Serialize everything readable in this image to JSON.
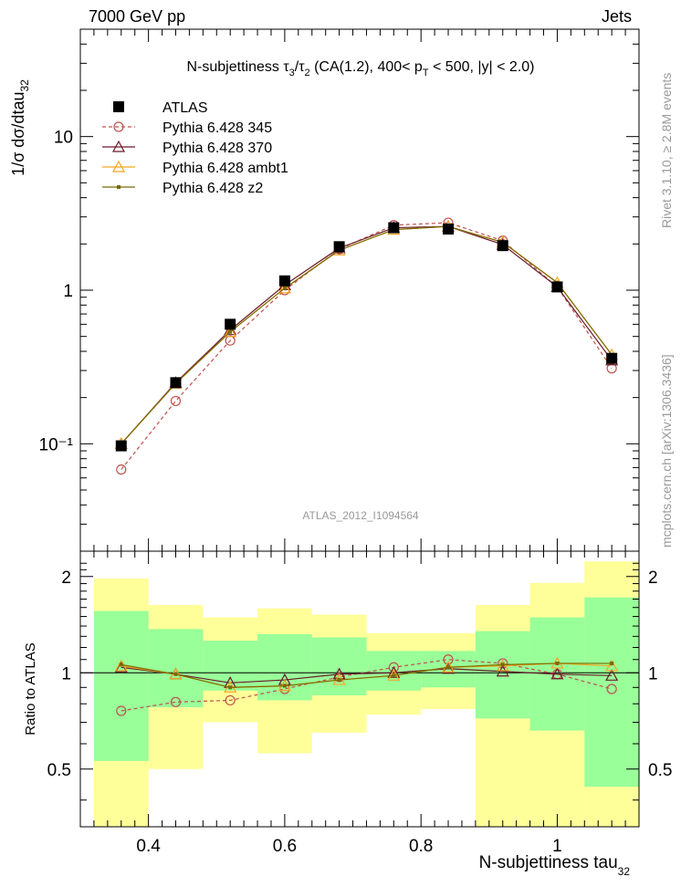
{
  "header": {
    "left": "7000 GeV pp",
    "right": "Jets"
  },
  "side_labels": {
    "rivet": "Rivet 3.1.10, ≥ 2.8M events",
    "mcplots": "mcplots.cern.ch [arXiv:1306.3436]"
  },
  "analysis_id": "ATLAS_2012_I1094564",
  "chart_data": [
    {
      "type": "line",
      "title": "N-subjettiness  τ3/τ2 (CA(1.2), 400< pT < 500, |y| < 2.0)",
      "ylabel": "1/σ dσ/dtau32",
      "yscale": "log",
      "ylim": [
        0.02,
        50
      ],
      "xlim": [
        0.3,
        1.12
      ],
      "ytick_labels": [
        "10⁻¹",
        "1",
        "10"
      ],
      "x": [
        0.36,
        0.44,
        0.52,
        0.6,
        0.68,
        0.76,
        0.84,
        0.92,
        1.0,
        1.08
      ],
      "series": [
        {
          "name": "ATLAS",
          "color": "#000000",
          "marker": "square",
          "values": [
            0.097,
            0.25,
            0.6,
            1.15,
            1.92,
            2.55,
            2.5,
            1.95,
            1.05,
            0.36
          ]
        },
        {
          "name": "Pythia 6.428 345",
          "color": "#c0504d",
          "marker": "circle",
          "dashed": true,
          "values": [
            0.068,
            0.19,
            0.47,
            1.0,
            1.85,
            2.65,
            2.75,
            2.1,
            1.05,
            0.31
          ]
        },
        {
          "name": "Pythia 6.428 370",
          "color": "#6b1a2b",
          "marker": "triangle",
          "values": [
            0.1,
            0.25,
            0.55,
            1.08,
            1.88,
            2.55,
            2.6,
            1.98,
            1.05,
            0.35
          ]
        },
        {
          "name": "Pythia 6.428 ambt1",
          "color": "#f5a623",
          "marker": "triangle",
          "values": [
            0.1,
            0.247,
            0.535,
            1.03,
            1.82,
            2.48,
            2.6,
            2.05,
            1.12,
            0.38
          ]
        },
        {
          "name": "Pythia 6.428 z2",
          "color": "#7a6a00",
          "marker": "dot",
          "values": [
            0.1,
            0.247,
            0.535,
            1.03,
            1.82,
            2.48,
            2.6,
            2.05,
            1.12,
            0.38
          ]
        }
      ]
    },
    {
      "type": "line",
      "xlabel": "N-subjettiness tau32",
      "ylabel": "Ratio to ATLAS",
      "yscale": "log",
      "ylim": [
        0.33,
        2.4
      ],
      "xlim": [
        0.3,
        1.12
      ],
      "x_ticks": [
        0.4,
        0.6,
        0.8,
        1.0
      ],
      "x_tick_labels": [
        "0.4",
        "0.6",
        "0.8",
        "1"
      ],
      "y_ticks": [
        0.5,
        1,
        2
      ],
      "y_tick_labels": [
        "0.5",
        "1",
        "2"
      ],
      "x": [
        0.36,
        0.44,
        0.52,
        0.6,
        0.68,
        0.76,
        0.84,
        0.92,
        1.0,
        1.08
      ],
      "bin_edges": [
        0.32,
        0.4,
        0.48,
        0.56,
        0.64,
        0.72,
        0.8,
        0.88,
        0.96,
        1.04,
        1.12
      ],
      "bands": {
        "yellow": {
          "color": "#ffff99",
          "low": [
            0.33,
            0.5,
            0.7,
            0.56,
            0.65,
            0.74,
            0.77,
            0.33,
            0.33,
            0.33
          ],
          "high": [
            1.97,
            1.63,
            1.49,
            1.59,
            1.52,
            1.33,
            1.33,
            1.63,
            1.91,
            2.23
          ]
        },
        "green": {
          "color": "#99ff99",
          "low": [
            0.53,
            0.78,
            0.88,
            0.82,
            0.85,
            0.88,
            0.9,
            0.72,
            0.66,
            0.44
          ],
          "high": [
            1.56,
            1.37,
            1.26,
            1.32,
            1.29,
            1.17,
            1.17,
            1.35,
            1.49,
            1.72
          ]
        }
      },
      "series": [
        {
          "name": "Pythia 6.428 345",
          "color": "#c0504d",
          "marker": "circle",
          "dashed": true,
          "values": [
            0.76,
            0.81,
            0.82,
            0.89,
            0.97,
            1.04,
            1.1,
            1.07,
            0.99,
            0.89
          ]
        },
        {
          "name": "Pythia 6.428 370",
          "color": "#6b1a2b",
          "marker": "triangle",
          "values": [
            1.04,
            0.99,
            0.93,
            0.95,
            0.99,
            1.0,
            1.03,
            1.01,
            0.99,
            0.98
          ]
        },
        {
          "name": "Pythia 6.428 ambt1",
          "color": "#f5a623",
          "marker": "triangle",
          "values": [
            1.05,
            0.99,
            0.9,
            0.91,
            0.95,
            0.98,
            1.04,
            1.05,
            1.07,
            1.05
          ]
        },
        {
          "name": "Pythia 6.428 z2",
          "color": "#7a6a00",
          "marker": "dot",
          "values": [
            1.06,
            0.99,
            0.9,
            0.91,
            0.95,
            0.98,
            1.04,
            1.06,
            1.07,
            1.07
          ]
        }
      ]
    }
  ]
}
